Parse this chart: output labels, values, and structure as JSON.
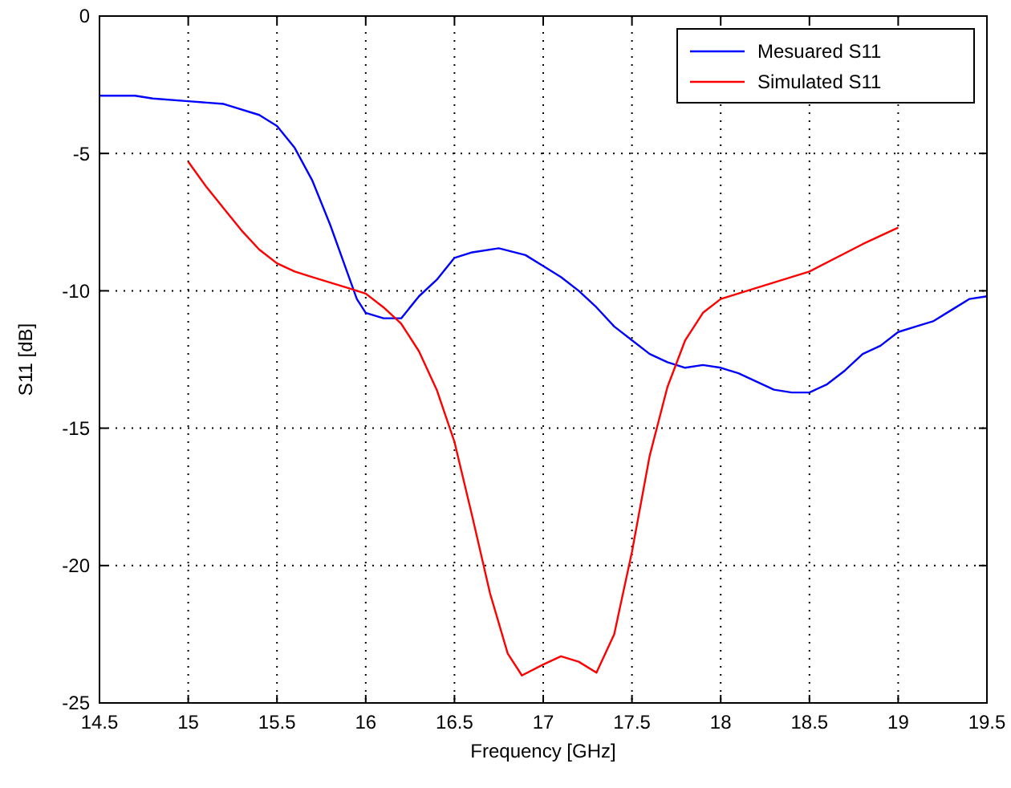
{
  "chart_data": {
    "type": "line",
    "xlabel": "Frequency [GHz]",
    "ylabel": "S11 [dB]",
    "xlim": [
      14.5,
      19.5
    ],
    "xticks": [
      14.5,
      15,
      15.5,
      16,
      16.5,
      17,
      17.5,
      18,
      18.5,
      19,
      19.5
    ],
    "ylim": [
      -25,
      0
    ],
    "yticks": [
      -25,
      -20,
      -15,
      -10,
      -5,
      0
    ],
    "grid": true,
    "legend": "top right",
    "line_style": "solid",
    "marker": "none",
    "series": [
      {
        "name": "Mesuared S11",
        "color": "#0000ff",
        "x": [
          14.5,
          14.7,
          14.8,
          15.0,
          15.2,
          15.4,
          15.5,
          15.6,
          15.7,
          15.8,
          15.9,
          15.95,
          16.0,
          16.1,
          16.2,
          16.3,
          16.4,
          16.5,
          16.6,
          16.75,
          16.9,
          17.0,
          17.1,
          17.2,
          17.3,
          17.4,
          17.5,
          17.6,
          17.7,
          17.8,
          17.9,
          18.0,
          18.1,
          18.2,
          18.3,
          18.4,
          18.5,
          18.6,
          18.7,
          18.8,
          18.9,
          19.0,
          19.1,
          19.2,
          19.3,
          19.4,
          19.5
        ],
        "values": [
          -2.9,
          -2.9,
          -3.0,
          -3.1,
          -3.2,
          -3.6,
          -4.0,
          -4.8,
          -6.0,
          -7.6,
          -9.4,
          -10.3,
          -10.8,
          -11.0,
          -11.0,
          -10.2,
          -9.6,
          -8.8,
          -8.6,
          -8.45,
          -8.7,
          -9.1,
          -9.5,
          -10.0,
          -10.6,
          -11.3,
          -11.8,
          -12.3,
          -12.6,
          -12.8,
          -12.7,
          -12.8,
          -13.0,
          -13.3,
          -13.6,
          -13.7,
          -13.7,
          -13.4,
          -12.9,
          -12.3,
          -12.0,
          -11.5,
          -11.3,
          -11.1,
          -10.7,
          -10.3,
          -10.2
        ]
      },
      {
        "name": "Simulated S11",
        "color": "#ff0000",
        "x": [
          15.0,
          15.1,
          15.2,
          15.3,
          15.4,
          15.5,
          15.6,
          15.7,
          15.8,
          15.9,
          16.0,
          16.1,
          16.2,
          16.3,
          16.4,
          16.5,
          16.6,
          16.7,
          16.8,
          16.88,
          17.0,
          17.1,
          17.2,
          17.3,
          17.4,
          17.5,
          17.6,
          17.7,
          17.8,
          17.9,
          18.0,
          18.2,
          18.5,
          18.8,
          19.0
        ],
        "values": [
          -5.3,
          -6.2,
          -7.0,
          -7.8,
          -8.5,
          -9.0,
          -9.3,
          -9.5,
          -9.7,
          -9.9,
          -10.1,
          -10.6,
          -11.2,
          -12.2,
          -13.6,
          -15.5,
          -18.2,
          -21.0,
          -23.2,
          -24.0,
          -23.6,
          -23.3,
          -23.5,
          -23.9,
          -22.5,
          -19.5,
          -16.0,
          -13.5,
          -11.8,
          -10.8,
          -10.3,
          -9.9,
          -9.3,
          -8.3,
          -7.7
        ]
      }
    ]
  }
}
